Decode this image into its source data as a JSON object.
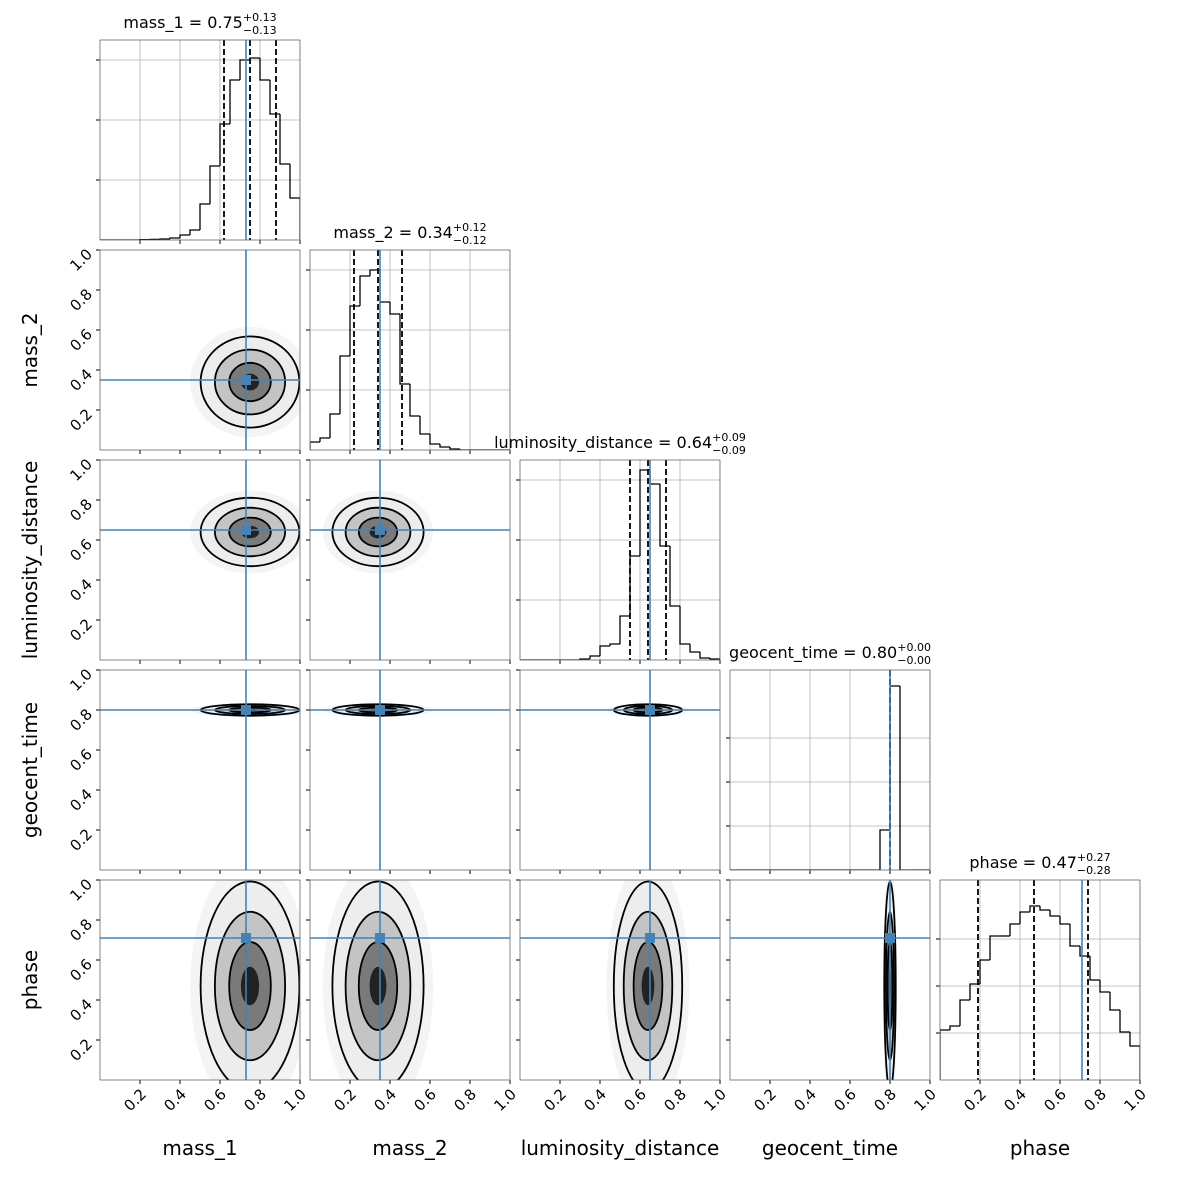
{
  "chart_data": {
    "type": "corner",
    "lim": [
      0,
      1
    ],
    "ticks": [
      0.2,
      0.4,
      0.6,
      0.8,
      {
        "value": 1,
        "label": "1.0"
      }
    ],
    "truth_color": "#4682b4",
    "parameters": [
      {
        "label": "mass_1",
        "title": "mass_1 = 0.75",
        "title_upper": "+0.13",
        "title_lower": "−0.13",
        "quantiles": [
          0.62,
          0.75,
          0.88
        ],
        "truth": 0.73,
        "hist": {
          "bins": [
            0,
            0.05,
            0.1,
            0.15,
            0.2,
            0.25,
            0.3,
            0.35,
            0.4,
            0.45,
            0.5,
            0.55,
            0.6,
            0.65,
            0.7,
            0.75,
            0.8,
            0.85,
            0.9,
            0.95,
            1
          ],
          "values": [
            0,
            0,
            0,
            0,
            0.002,
            0.003,
            0.005,
            0.01,
            0.025,
            0.05,
            0.18,
            0.37,
            0.58,
            0.8,
            0.9,
            0.91,
            0.8,
            0.63,
            0.38,
            0.21
          ],
          "ylim": [
            0,
            1
          ],
          "yticks": [
            0.3,
            0.6,
            0.9
          ]
        }
      },
      {
        "label": "mass_2",
        "title": "mass_2 = 0.34",
        "title_upper": "+0.12",
        "title_lower": "−0.12",
        "quantiles": [
          0.22,
          0.34,
          0.46
        ],
        "truth": 0.35,
        "hist": {
          "bins": [
            0,
            0.05,
            0.1,
            0.15,
            0.2,
            0.25,
            0.3,
            0.35,
            0.4,
            0.45,
            0.5,
            0.55,
            0.6,
            0.65,
            0.7,
            0.75,
            0.8,
            0.85,
            0.9,
            0.95,
            1
          ],
          "values": [
            0.04,
            0.06,
            0.18,
            0.47,
            0.72,
            0.87,
            0.9,
            0.74,
            0.68,
            0.33,
            0.17,
            0.08,
            0.03,
            0.015,
            0.005,
            0,
            0,
            0,
            0,
            0
          ],
          "ylim": [
            0,
            1
          ],
          "yticks": [
            0.3,
            0.6,
            0.9
          ]
        }
      },
      {
        "label": "luminosity_distance",
        "title": "luminosity_distance = 0.64",
        "title_upper": "+0.09",
        "title_lower": "−0.09",
        "quantiles": [
          0.55,
          0.64,
          0.73
        ],
        "truth": 0.65,
        "hist": {
          "bins": [
            0,
            0.05,
            0.1,
            0.15,
            0.2,
            0.25,
            0.3,
            0.35,
            0.4,
            0.45,
            0.5,
            0.55,
            0.6,
            0.65,
            0.7,
            0.75,
            0.8,
            0.85,
            0.9,
            0.95,
            1
          ],
          "values": [
            0,
            0,
            0,
            0,
            0,
            0,
            0.005,
            0.02,
            0.07,
            0.08,
            0.22,
            0.52,
            0.95,
            0.88,
            0.57,
            0.27,
            0.08,
            0.04,
            0.01,
            0.005
          ],
          "ylim": [
            0,
            1
          ],
          "yticks": [
            0.3,
            0.6,
            0.9
          ]
        }
      },
      {
        "label": "geocent_time",
        "title": "geocent_time = 0.80",
        "title_upper": "+0.00",
        "title_lower": "−0.00",
        "quantiles": [
          0.8,
          0.8,
          0.8
        ],
        "truth": 0.8,
        "hist": {
          "bins": [
            0,
            0.05,
            0.1,
            0.15,
            0.2,
            0.25,
            0.3,
            0.35,
            0.4,
            0.45,
            0.5,
            0.55,
            0.6,
            0.65,
            0.7,
            0.75,
            0.8,
            0.85,
            0.9,
            0.95,
            1
          ],
          "values": [
            0,
            0,
            0,
            0,
            0,
            0,
            0,
            0,
            0,
            0,
            0,
            0,
            0,
            0,
            0,
            0.2,
            0.92,
            0,
            0,
            0
          ],
          "ylim": [
            0,
            1
          ],
          "yticks": [
            0.22,
            0.44,
            0.66
          ]
        }
      },
      {
        "label": "phase",
        "title": "phase = 0.47",
        "title_upper": "+0.27",
        "title_lower": "−0.28",
        "quantiles": [
          0.19,
          0.47,
          0.74
        ],
        "truth": 0.71,
        "hist": {
          "bins": [
            0,
            0.05,
            0.1,
            0.15,
            0.2,
            0.25,
            0.3,
            0.35,
            0.4,
            0.45,
            0.5,
            0.55,
            0.6,
            0.65,
            0.7,
            0.75,
            0.8,
            0.85,
            0.9,
            0.95,
            1
          ],
          "values": [
            0.25,
            0.27,
            0.4,
            0.48,
            0.6,
            0.72,
            0.72,
            0.78,
            0.84,
            0.87,
            0.85,
            0.82,
            0.78,
            0.67,
            0.62,
            0.5,
            0.44,
            0.35,
            0.24,
            0.17
          ],
          "ylim": [
            0,
            1
          ],
          "yticks": [
            0.235,
            0.47,
            0.705
          ]
        }
      }
    ]
  }
}
